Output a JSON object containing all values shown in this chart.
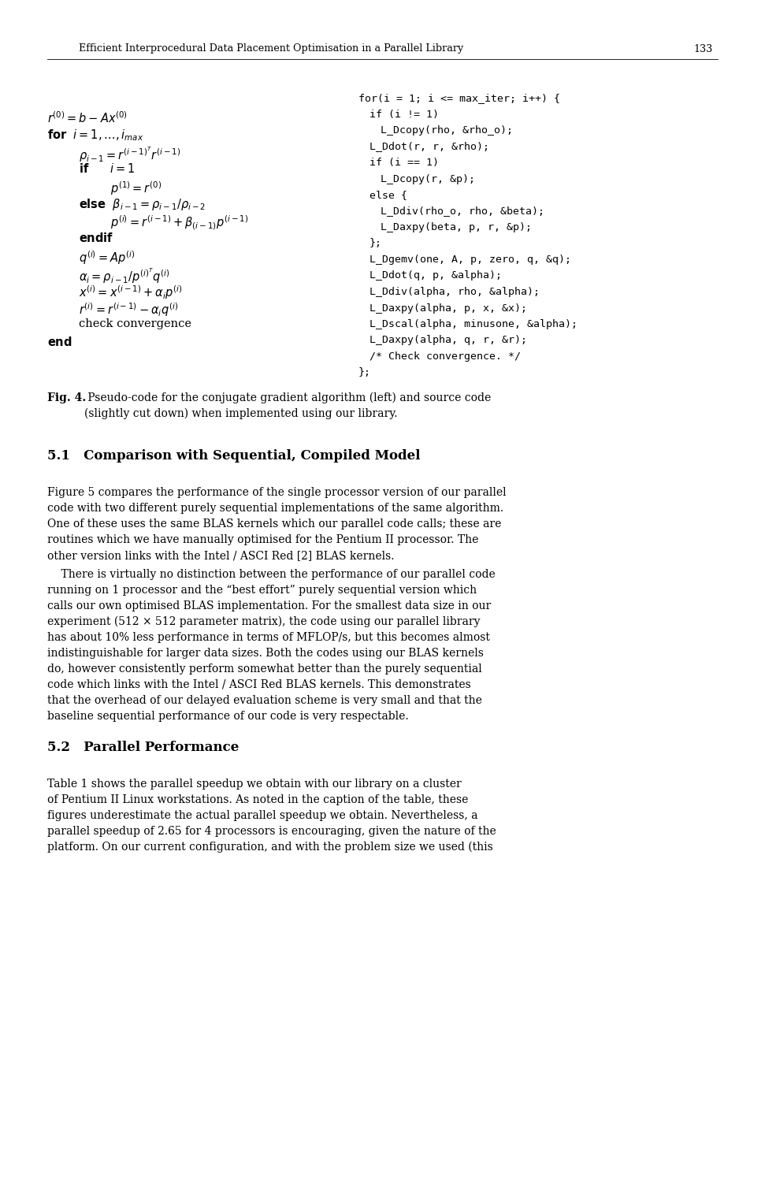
{
  "bg_color": "#ffffff",
  "text_color": "#000000",
  "header_text": "Efficient Interprocedural Data Placement Optimisation in a Parallel Library",
  "page_number": "133",
  "right_code_lines": [
    {
      "text": "for(i = 1; i <= max_iter; i++) {",
      "indent": 0
    },
    {
      "text": "if (i != 1)",
      "indent": 1
    },
    {
      "text": "L_Dcopy(rho, &rho_o);",
      "indent": 2
    },
    {
      "text": "L_Ddot(r, r, &rho);",
      "indent": 1
    },
    {
      "text": "if (i == 1)",
      "indent": 1
    },
    {
      "text": "L_Dcopy(r, &p);",
      "indent": 2
    },
    {
      "text": "else {",
      "indent": 1
    },
    {
      "text": "L_Ddiv(rho_o, rho, &beta);",
      "indent": 2
    },
    {
      "text": "L_Daxpy(beta, p, r, &p);",
      "indent": 2
    },
    {
      "text": "};",
      "indent": 1
    },
    {
      "text": "L_Dgemv(one, A, p, zero, q, &q);",
      "indent": 1
    },
    {
      "text": "L_Ddot(q, p, &alpha);",
      "indent": 1
    },
    {
      "text": "L_Ddiv(alpha, rho, &alpha);",
      "indent": 1
    },
    {
      "text": "L_Daxpy(alpha, p, x, &x);",
      "indent": 1
    },
    {
      "text": "L_Dscal(alpha, minusone, &alpha);",
      "indent": 1
    },
    {
      "text": "L_Daxpy(alpha, q, r, &r);",
      "indent": 1
    },
    {
      "text": "/* Check convergence. */",
      "indent": 1
    },
    {
      "text": "};",
      "indent": 0
    }
  ],
  "fig_caption_bold": "Fig. 4.",
  "fig_caption_rest": " Pseudo-code for the conjugate gradient algorithm (left) and source code\n(slightly cut down) when implemented using our library.",
  "section_51_title": "5.1   Comparison with Sequential, Compiled Model",
  "section_51_para1": "Figure 5 compares the performance of the single processor version of our parallel code with two different purely sequential implementations of the same algorithm. One of these uses the same BLAS kernels which our parallel code calls; these are routines which we have manually optimised for the Pentium II processor. The other version links with the Intel / ASCI Red [2] BLAS kernels.",
  "section_51_para2": "There is virtually no distinction between the performance of our parallel code running on 1 processor and the “best effort” purely sequential version which calls our own optimised BLAS implementation. For the smallest data size in our experiment (512 × 512 parameter matrix), the code using our parallel library has about 10% less performance in terms of MFLOP/s, but this becomes almost indistinguishable for larger data sizes. Both the codes using our BLAS kernels do, however consistently perform somewhat better than the purely sequential code which links with the Intel / ASCI Red BLAS kernels. This demonstrates that the overhead of our delayed evaluation scheme is very small and that the baseline sequential performance of our code is very respectable.",
  "section_52_title": "5.2   Parallel Performance",
  "section_52_para1": "Table 1 shows the parallel speedup we obtain with our library on a cluster of Pentium II Linux workstations. As noted in the caption of the table, these figures underestimate the actual parallel speedup we obtain. Nevertheless, a parallel speedup of 2.65 for 4 processors is encouraging, given the nature of the platform. On our current configuration, and with the problem size we used (this"
}
